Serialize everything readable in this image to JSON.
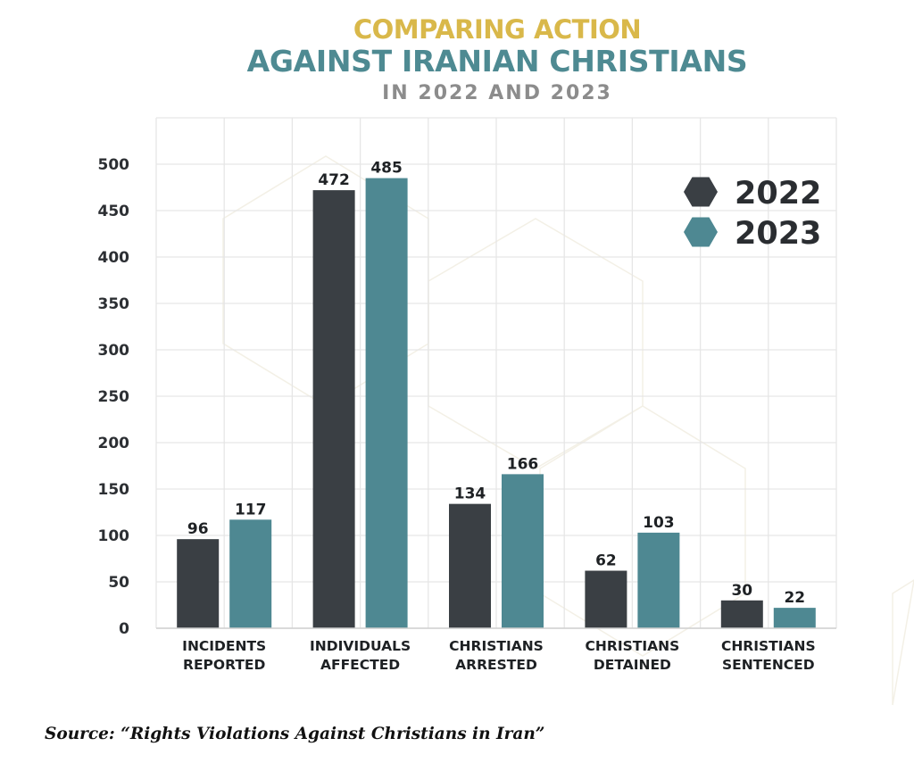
{
  "colors": {
    "title_gold": "#d9b84a",
    "title_teal": "#4e8a92",
    "title_gray": "#8c8c8c",
    "series_2022": "#3a3f44",
    "series_2023": "#4e8892",
    "grid": "#e6e6e6"
  },
  "source": "Source: “Rights Violations Against Christians in Iran”",
  "chart_data": {
    "type": "bar",
    "title": "COMPARING ACTION",
    "title_line2": "AGAINST IRANIAN CHRISTIANS",
    "subtitle": "IN 2022 AND 2023",
    "xlabel": "",
    "ylabel": "",
    "categories": [
      [
        "INCIDENTS",
        "REPORTED"
      ],
      [
        "INDIVIDUALS",
        "AFFECTED"
      ],
      [
        "CHRISTIANS",
        "ARRESTED"
      ],
      [
        "CHRISTIANS",
        "DETAINED"
      ],
      [
        "CHRISTIANS",
        "SENTENCED"
      ]
    ],
    "series": [
      {
        "name": "2022",
        "values": [
          96,
          472,
          134,
          62,
          30
        ]
      },
      {
        "name": "2023",
        "values": [
          117,
          485,
          166,
          103,
          22
        ]
      }
    ],
    "ylim": [
      0,
      500
    ],
    "yticks": [
      0,
      50,
      100,
      150,
      200,
      250,
      300,
      350,
      400,
      450,
      500
    ],
    "grid": true,
    "legend": "top-right",
    "data_labels": true
  }
}
